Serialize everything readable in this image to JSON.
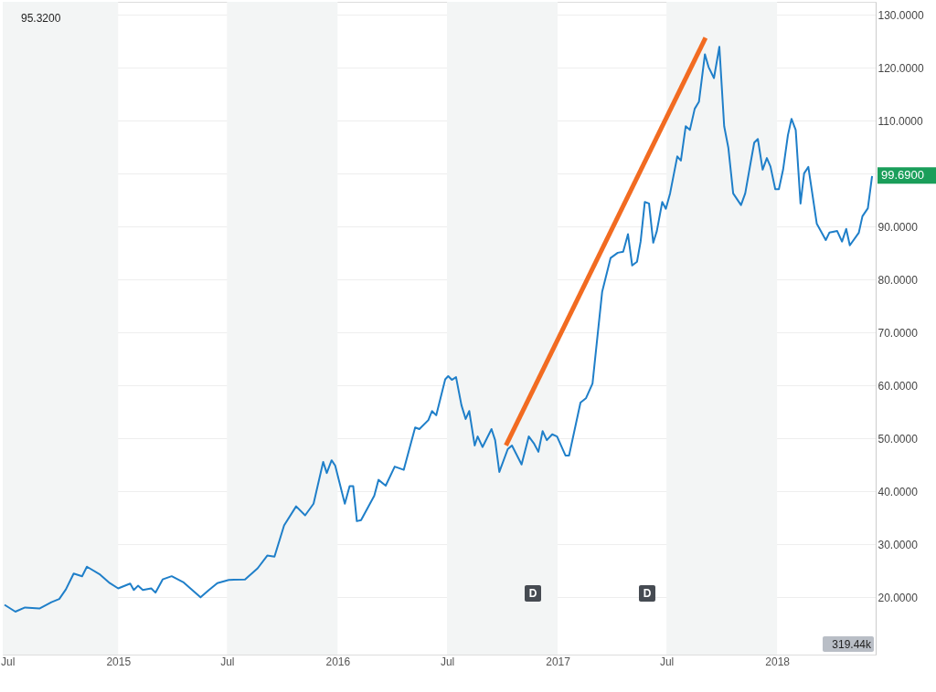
{
  "chart_data": {
    "type": "line",
    "annotations": [
      "95.3200",
      {
        "text": "99.6900",
        "x": "2018-06-08",
        "y": 99.69
      },
      "D",
      "D",
      "319.44k"
    ],
    "x": [
      "2014-06-26",
      "2014-07-14",
      "2014-07-30",
      "2014-08-23",
      "2014-09-12",
      "2014-09-25",
      "2014-10-06",
      "2014-10-19",
      "2014-11-02",
      "2014-11-10",
      "2014-12-02",
      "2014-12-18",
      "2015-01-01",
      "2015-01-21",
      "2015-01-27",
      "2015-02-03",
      "2015-02-11",
      "2015-02-25",
      "2015-03-04",
      "2015-03-16",
      "2015-03-31",
      "2015-04-19",
      "2015-05-18",
      "2015-06-01",
      "2015-06-15",
      "2015-07-04",
      "2015-07-31",
      "2015-08-21",
      "2015-09-06",
      "2015-09-18",
      "2015-10-04",
      "2015-10-24",
      "2015-11-08",
      "2015-11-22",
      "2015-12-08",
      "2015-12-14",
      "2015-12-22",
      "2015-12-28",
      "2016-01-13",
      "2016-01-21",
      "2016-01-27",
      "2016-02-02",
      "2016-02-09",
      "2016-03-02",
      "2016-03-09",
      "2016-03-21",
      "2016-04-05",
      "2016-04-20",
      "2016-05-09",
      "2016-05-16",
      "2016-05-31",
      "2016-06-06",
      "2016-06-13",
      "2016-06-28",
      "2016-07-03",
      "2016-07-09",
      "2016-07-16",
      "2016-07-25",
      "2016-08-01",
      "2016-08-07",
      "2016-08-16",
      "2016-08-21",
      "2016-08-29",
      "2016-09-13",
      "2016-09-19",
      "2016-09-26",
      "2016-10-10",
      "2016-10-17",
      "2016-11-02",
      "2016-11-14",
      "2016-11-23",
      "2016-11-30",
      "2016-12-07",
      "2016-12-14",
      "2016-12-23",
      "2016-12-31",
      "2017-01-14",
      "2017-01-20",
      "2017-02-08",
      "2017-02-17",
      "2017-02-28",
      "2017-03-10",
      "2017-03-16",
      "2017-03-30",
      "2017-04-11",
      "2017-04-20",
      "2017-04-28",
      "2017-05-05",
      "2017-05-13",
      "2017-05-19",
      "2017-05-26",
      "2017-06-02",
      "2017-06-09",
      "2017-06-15",
      "2017-06-24",
      "2017-06-30",
      "2017-07-07",
      "2017-07-19",
      "2017-07-25",
      "2017-08-02",
      "2017-08-09",
      "2017-08-17",
      "2017-08-24",
      "2017-09-03",
      "2017-09-09",
      "2017-09-18",
      "2017-09-27",
      "2017-10-05",
      "2017-10-12",
      "2017-10-20",
      "2017-11-02",
      "2017-11-09",
      "2017-11-18",
      "2017-11-24",
      "2017-11-30",
      "2017-12-08",
      "2017-12-15",
      "2017-12-21",
      "2017-12-29",
      "2018-01-04",
      "2018-01-11",
      "2018-01-19",
      "2018-01-25",
      "2018-02-01",
      "2018-02-09",
      "2018-02-15",
      "2018-02-22",
      "2018-03-08",
      "2018-03-23",
      "2018-03-29",
      "2018-04-11",
      "2018-04-19",
      "2018-04-26",
      "2018-05-02",
      "2018-05-17",
      "2018-05-23",
      "2018-06-01",
      "2018-06-08"
    ],
    "series": [
      {
        "color": "#1f7fc9",
        "values": [
          18.6,
          17.3,
          18.1,
          17.9,
          19.1,
          19.7,
          21.5,
          24.5,
          24.0,
          25.8,
          24.3,
          22.7,
          21.7,
          22.6,
          21.4,
          22.2,
          21.4,
          21.7,
          20.9,
          23.4,
          24.0,
          22.9,
          20.0,
          21.4,
          22.7,
          23.3,
          23.4,
          25.5,
          27.9,
          27.7,
          33.6,
          37.2,
          35.5,
          37.7,
          45.6,
          43.5,
          45.9,
          44.9,
          37.7,
          41.0,
          41.0,
          34.4,
          34.6,
          39.2,
          42.2,
          41.1,
          44.7,
          44.1,
          52.1,
          51.8,
          53.5,
          55.2,
          54.4,
          61.2,
          61.8,
          61.1,
          61.6,
          56.3,
          53.7,
          55.2,
          48.7,
          50.4,
          48.4,
          51.8,
          49.7,
          43.7,
          48.0,
          48.7,
          45.1,
          50.4,
          49.0,
          47.5,
          51.4,
          49.7,
          50.8,
          50.4,
          46.8,
          46.8,
          56.8,
          57.6,
          60.4,
          71.2,
          77.7,
          84.1,
          85.1,
          85.3,
          88.6,
          82.7,
          83.4,
          87.2,
          94.7,
          94.4,
          87.0,
          89.2,
          94.7,
          93.4,
          96.3,
          103.3,
          102.5,
          109.0,
          108.3,
          112.3,
          113.6,
          122.6,
          120.2,
          118.1,
          124.0,
          109.0,
          104.9,
          96.3,
          94.1,
          96.3,
          102.1,
          105.9,
          106.6,
          100.8,
          103.0,
          101.4,
          97.1,
          97.1,
          100.8,
          107.3,
          110.4,
          108.3,
          94.4,
          100.1,
          101.3,
          90.6,
          87.5,
          88.9,
          89.2,
          87.2,
          89.6,
          86.5,
          88.9,
          92.0,
          93.5,
          99.6
        ]
      },
      {
        "type": "line",
        "color": "#f26b21",
        "x": [
          "2016-10-07",
          "2017-09-04"
        ],
        "values": [
          48.7,
          125.7
        ]
      }
    ],
    "xlim": [
      "2014-06-23",
      "2018-06-14"
    ],
    "xticks": [
      {
        "value": "2014-07-01",
        "label": "Jul"
      },
      {
        "value": "2015-01-01",
        "label": "2015"
      },
      {
        "value": "2015-07-01",
        "label": "Jul"
      },
      {
        "value": "2016-01-01",
        "label": "2016"
      },
      {
        "value": "2016-07-01",
        "label": "Jul"
      },
      {
        "value": "2017-01-01",
        "label": "2017"
      },
      {
        "value": "2017-07-01",
        "label": "Jul"
      },
      {
        "value": "2018-01-01",
        "label": "2018"
      }
    ],
    "ylim": [
      9.2,
      132.5
    ],
    "yticks": [
      {
        "value": 20,
        "label": "20.0000"
      },
      {
        "value": 30,
        "label": "30.0000"
      },
      {
        "value": 40,
        "label": "40.0000"
      },
      {
        "value": 50,
        "label": "50.0000"
      },
      {
        "value": 60,
        "label": "60.0000"
      },
      {
        "value": 70,
        "label": "70.0000"
      },
      {
        "value": 80,
        "label": "80.0000"
      },
      {
        "value": 90,
        "label": "90.0000"
      },
      {
        "value": 100,
        "label": null
      },
      {
        "value": 110,
        "label": "110.0000"
      },
      {
        "value": 120,
        "label": "120.0000"
      },
      {
        "value": 130,
        "label": "130.0000"
      }
    ],
    "bands": [
      {
        "axis": "x",
        "from": "2014-06-23",
        "to": "2015-01-01",
        "color": "#f3f5f5"
      },
      {
        "axis": "x",
        "from": "2015-07-01",
        "to": "2016-01-01",
        "color": "#f3f5f5"
      },
      {
        "axis": "x",
        "from": "2016-07-01",
        "to": "2017-01-01",
        "color": "#f3f5f5"
      },
      {
        "axis": "x",
        "from": "2017-07-01",
        "to": "2018-01-01",
        "color": "#f3f5f5"
      }
    ],
    "grid": "y",
    "line_style": "solid"
  }
}
